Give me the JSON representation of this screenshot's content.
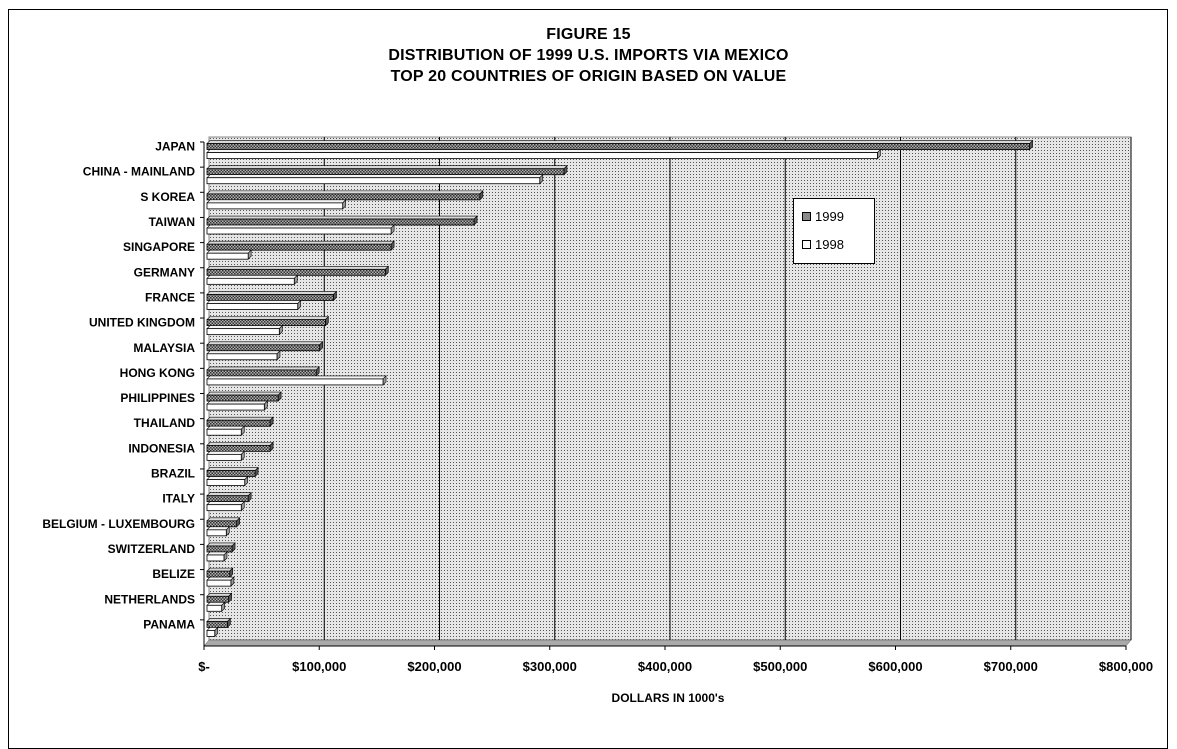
{
  "figure_label": "FIGURE 15",
  "title_line1": "DISTRIBUTION OF 1999 U.S. IMPORTS VIA MEXICO",
  "title_line2": "TOP 20 COUNTRIES OF ORIGIN BASED ON VALUE",
  "colors": {
    "series_1999": "#8a8a8a",
    "series_1998": "#ffffff",
    "plot_background": "#cfcfcf",
    "gridline": "#000000"
  },
  "chart_data": {
    "type": "bar",
    "orientation": "horizontal",
    "title": "DISTRIBUTION OF 1999 U.S. IMPORTS VIA MEXICO",
    "subtitle": "TOP 20 COUNTRIES OF ORIGIN BASED ON VALUE",
    "xlabel": "DOLLARS IN 1000's",
    "ylabel": "",
    "xlim": [
      0,
      800000
    ],
    "x_ticks": [
      0,
      100000,
      200000,
      300000,
      400000,
      500000,
      600000,
      700000,
      800000
    ],
    "x_tick_labels": [
      "$-",
      "$100,000",
      "$200,000",
      "$300,000",
      "$400,000",
      "$500,000",
      "$600,000",
      "$700,000",
      "$800,000"
    ],
    "grid": "vertical",
    "legend_position": "top-right",
    "categories": [
      "JAPAN",
      "CHINA - MAINLAND",
      "S KOREA",
      "TAIWAN",
      "SINGAPORE",
      "GERMANY",
      "FRANCE",
      "UNITED KINGDOM",
      "MALAYSIA",
      "HONG KONG",
      "PHILIPPINES",
      "THAILAND",
      "INDONESIA",
      "BRAZIL",
      "ITALY",
      "BELGIUM - LUXEMBOURG",
      "SWITZERLAND",
      "BELIZE",
      "NETHERLANDS",
      "PANAMA"
    ],
    "series": [
      {
        "name": "1999",
        "values": [
          712000,
          308000,
          235000,
          230000,
          158000,
          153000,
          108000,
          101000,
          96000,
          93000,
          60000,
          53000,
          53000,
          40000,
          34000,
          24000,
          20000,
          18000,
          17000,
          16000
        ]
      },
      {
        "name": "1998",
        "values": [
          580000,
          287000,
          116000,
          158000,
          34000,
          74000,
          77000,
          61000,
          59000,
          151000,
          48000,
          28000,
          28000,
          31000,
          28000,
          15000,
          13000,
          19000,
          11000,
          5000
        ]
      }
    ]
  }
}
